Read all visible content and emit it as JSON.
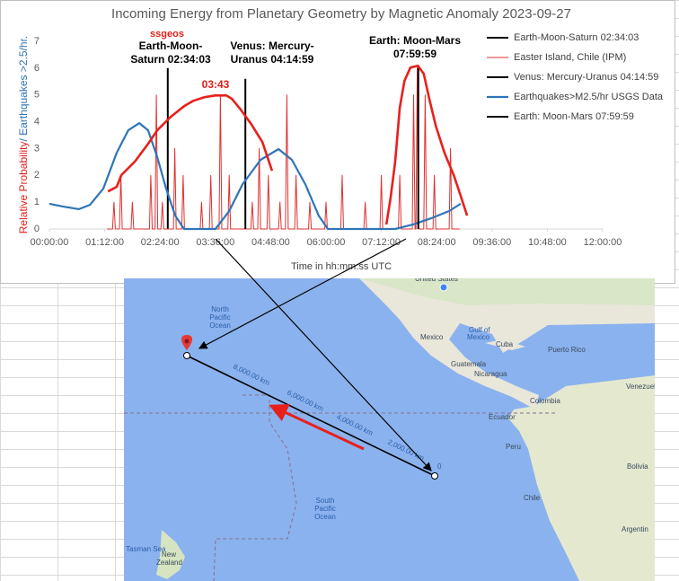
{
  "chart_data": {
    "type": "line",
    "title": "Incoming Energy from Planetary Geometry by Magnetic Anomaly 2023-09-27",
    "ylabel": [
      {
        "text": "Relative Probability",
        "color": "#e0201c"
      },
      {
        "text": "/ Earthquakes >2.5/hr.",
        "color": "#2e75b6"
      }
    ],
    "xlabel": "Time in hh:mm:ss UTC",
    "xlim": [
      0,
      12
    ],
    "ylim": [
      0,
      7
    ],
    "xticks": [
      {
        "value": 0,
        "label": "00:00:00"
      },
      {
        "value": 1.2,
        "label": "01:12:00"
      },
      {
        "value": 2.4,
        "label": "02:24:00"
      },
      {
        "value": 3.6,
        "label": "03:36:00"
      },
      {
        "value": 4.8,
        "label": "04:48:00"
      },
      {
        "value": 6,
        "label": "06:00:00"
      },
      {
        "value": 7.2,
        "label": "07:12:00"
      },
      {
        "value": 8.4,
        "label": "08:24:00"
      },
      {
        "value": 9.6,
        "label": "09:36:00"
      },
      {
        "value": 10.8,
        "label": "10:48:00"
      },
      {
        "value": 12,
        "label": "12:00:00"
      }
    ],
    "yticks": [
      0,
      1,
      2,
      3,
      4,
      5,
      6,
      7
    ],
    "grid": false,
    "legend": "right",
    "series": [
      {
        "name": "Earth-Moon-Saturn 02:34:03",
        "color": "#000000",
        "width": 2,
        "x": [
          2.5675,
          2.5675
        ],
        "values": [
          0,
          6
        ]
      },
      {
        "name": "Easter Island, Chile (IPM)",
        "color": "#e03030",
        "width": 1,
        "x": [
          1.25,
          1.37,
          1.4,
          1.43,
          1.52,
          1.55,
          1.58,
          1.77,
          1.8,
          1.83,
          2.17,
          2.2,
          2.23,
          2.29,
          2.32,
          2.35,
          2.42,
          2.45,
          2.48,
          2.69,
          2.72,
          2.75,
          2.87,
          2.9,
          2.93,
          3.27,
          3.3,
          3.33,
          3.47,
          3.5,
          3.53,
          3.68,
          3.71,
          3.74,
          3.87,
          3.9,
          3.93,
          4.37,
          4.4,
          4.43,
          4.52,
          4.55,
          4.58,
          4.72,
          4.75,
          4.78,
          4.97,
          5.0,
          5.03,
          5.12,
          5.15,
          5.18,
          5.32,
          5.35,
          5.38,
          5.62,
          5.65,
          5.68,
          5.97,
          6.0,
          6.03,
          6.32,
          6.35,
          6.38,
          6.82,
          6.85,
          6.88,
          7.17,
          7.2,
          7.23,
          7.57,
          7.6,
          7.63,
          7.87,
          7.9,
          7.93,
          7.95,
          7.98,
          8.01,
          8.12,
          8.15,
          8.18,
          8.32,
          8.35,
          8.38,
          8.67,
          8.7,
          8.73,
          8.9
        ],
        "values": [
          0,
          0,
          1,
          0,
          0,
          2,
          0,
          0,
          1,
          0,
          0,
          2,
          0,
          0,
          5,
          0,
          0,
          1,
          0,
          0,
          3,
          0,
          0,
          2,
          0,
          0,
          1,
          0,
          0,
          2,
          0,
          0,
          5,
          0,
          0,
          2,
          0,
          0,
          1,
          0,
          0,
          3,
          0,
          0,
          2,
          0,
          0,
          1,
          0,
          0,
          5,
          0,
          0,
          2,
          0,
          0,
          1,
          0,
          0,
          1,
          0,
          0,
          2,
          0,
          0,
          1,
          0,
          0,
          2,
          0,
          0,
          2,
          0,
          0,
          5,
          0,
          0,
          6,
          0,
          0,
          5,
          0,
          0,
          2,
          0,
          0,
          3,
          0,
          0
        ]
      },
      {
        "name": "Venus: Mercury-Uranus 04:14:59",
        "color": "#000000",
        "width": 2,
        "x": [
          4.2497,
          4.2497
        ],
        "values": [
          0,
          5.6
        ]
      },
      {
        "name": "Earthquakes>M2.5/hr USGS Data",
        "color": "#2e75b6",
        "width": 2.2,
        "x": [
          0,
          0.29,
          0.64,
          0.88,
          1.17,
          1.46,
          1.71,
          1.95,
          2.14,
          2.34,
          2.53,
          2.73,
          2.92,
          3.6,
          3.9,
          4.19,
          4.58,
          4.97,
          5.26,
          5.55,
          5.84,
          6.04,
          7.5,
          7.89,
          8.28,
          8.67,
          8.92
        ],
        "values": [
          0.94,
          0.84,
          0.74,
          0.9,
          1.51,
          2.84,
          3.68,
          3.95,
          3.68,
          2.68,
          1.51,
          0.5,
          0,
          0,
          0.67,
          1.67,
          2.58,
          2.98,
          2.58,
          1.67,
          0.5,
          0,
          0,
          0.17,
          0.4,
          0.67,
          0.94
        ]
      },
      {
        "name": "Earth: Moon-Mars 07:59:59",
        "color": "#000000",
        "width": 2,
        "x": [
          7.9997,
          7.9997
        ],
        "values": [
          0,
          6.1
        ]
      },
      {
        "color": "#e8201c",
        "width": 2.6,
        "x": [
          1.27,
          1.46,
          1.56,
          1.85,
          2.14,
          2.34,
          2.63,
          2.92,
          3.12,
          3.37,
          3.6,
          3.84,
          3.96,
          4.15,
          4.38,
          4.62,
          4.83,
          null,
          7.31,
          7.4,
          7.5,
          7.6,
          7.7,
          7.83,
          7.99,
          8.12,
          8.24,
          8.38,
          8.57,
          8.77,
          8.9,
          9.06
        ],
        "values": [
          1.4,
          1.57,
          2.01,
          2.51,
          3.18,
          3.68,
          4.18,
          4.58,
          4.78,
          4.92,
          4.98,
          4.98,
          4.85,
          4.45,
          3.91,
          3.24,
          2.17,
          null,
          0.17,
          1.17,
          2.51,
          4.52,
          5.52,
          6.02,
          6.09,
          5.79,
          4.85,
          3.85,
          2.84,
          2.01,
          1.34,
          0.5
        ]
      }
    ],
    "annotations": [
      {
        "lines": [
          "ssgeos"
        ],
        "color": "#e0201c"
      },
      {
        "lines": [
          "Earth-Moon-",
          "Saturn 02:34:03"
        ],
        "color": "#000000"
      },
      {
        "lines": [
          "Venus: Mercury-",
          "Uranus 04:14:59"
        ],
        "color": "#000000"
      },
      {
        "lines": [
          "Earth: Moon-Mars",
          "07:59:59"
        ],
        "color": "#000000"
      },
      {
        "lines": [
          "03:43"
        ],
        "color": "#e0201c"
      }
    ]
  },
  "map": {
    "north_ocean": [
      "North",
      "Pacific",
      "Ocean"
    ],
    "south_ocean": [
      "South",
      "Pacific",
      "Ocean"
    ],
    "places": [
      "United States",
      "Mexico",
      "Gulf of",
      "Mexico",
      "Cuba",
      "Puerto Rico",
      "Guatemala",
      "Nicaragua",
      "Venezuel",
      "Colombia",
      "Ecuador",
      "Peru",
      "Bolivia",
      "Chile",
      "Argentin",
      "New",
      "Zealand",
      "Tasman Sea"
    ],
    "distances": [
      "8,000.00 km",
      "6,000.00 km",
      "4,000.00 km",
      "2,000.00 km",
      "0"
    ]
  }
}
